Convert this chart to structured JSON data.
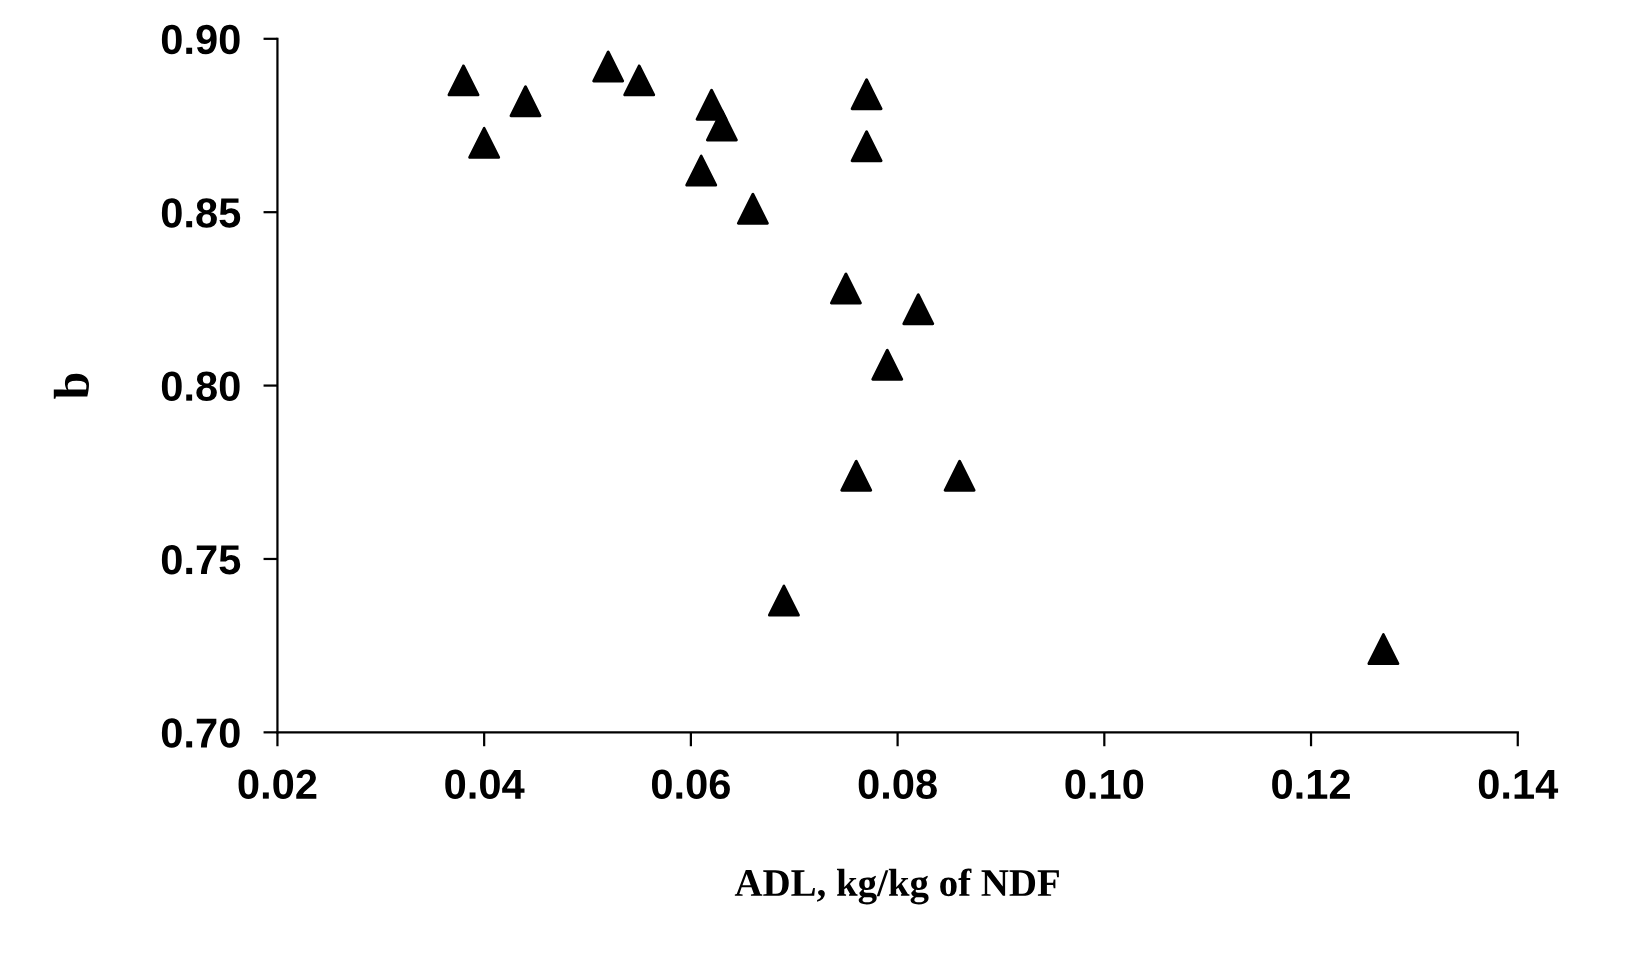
{
  "chart_data": {
    "type": "scatter",
    "xlabel": "ADL, kg/kg of NDF",
    "ylabel": "b",
    "x": [
      0.038,
      0.04,
      0.044,
      0.052,
      0.055,
      0.062,
      0.063,
      0.061,
      0.066,
      0.077,
      0.077,
      0.075,
      0.082,
      0.079,
      0.076,
      0.086,
      0.069,
      0.127
    ],
    "series": [
      {
        "color": "#000000",
        "values": [
          0.888,
          0.87,
          0.882,
          0.892,
          0.888,
          0.881,
          0.875,
          0.862,
          0.851,
          0.884,
          0.869,
          0.828,
          0.822,
          0.806,
          0.774,
          0.774,
          0.738,
          0.724
        ]
      }
    ],
    "xlim": [
      0.02,
      0.14
    ],
    "xticks": [
      {
        "value": 0.02,
        "label": "0.02"
      },
      {
        "value": 0.04,
        "label": "0.04"
      },
      {
        "value": 0.06,
        "label": "0.06"
      },
      {
        "value": 0.08,
        "label": "0.08"
      },
      {
        "value": 0.1,
        "label": "0.10"
      },
      {
        "value": 0.12,
        "label": "0.12"
      },
      {
        "value": 0.14,
        "label": "0.14"
      }
    ],
    "ylim": [
      0.7,
      0.9
    ],
    "yticks": [
      {
        "value": 0.7,
        "label": "0.70"
      },
      {
        "value": 0.75,
        "label": "0.75"
      },
      {
        "value": 0.8,
        "label": "0.80"
      },
      {
        "value": 0.85,
        "label": "0.85"
      },
      {
        "value": 0.9,
        "label": "0.90"
      }
    ],
    "marker": "triangle",
    "grid": false,
    "legend": false
  }
}
